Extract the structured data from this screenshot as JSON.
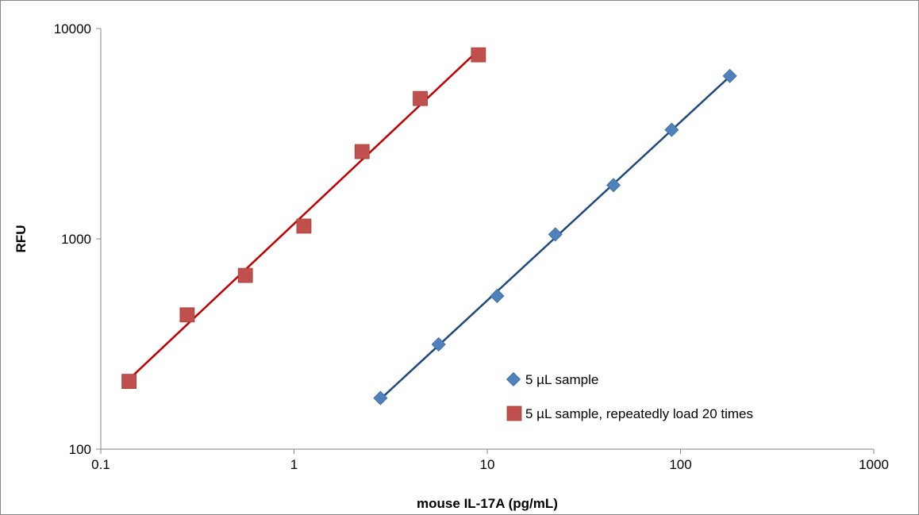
{
  "chart_data": {
    "type": "scatter",
    "xlabel": "mouse IL-17A (pg/mL)",
    "ylabel": "RFU",
    "x_scale": "log",
    "y_scale": "log",
    "xlim": [
      0.1,
      1000
    ],
    "ylim": [
      100,
      10000
    ],
    "x_ticks": [
      "0.1",
      "1",
      "10",
      "100",
      "1000"
    ],
    "y_ticks": [
      "100",
      "1000",
      "10000"
    ],
    "grid": false,
    "legend_position": "inside-lower-right",
    "series": [
      {
        "name": "5 µL sample",
        "marker": "diamond",
        "color": "#4F81BD",
        "trendline_color": "#1F497D",
        "trendline": "power",
        "x": [
          2.8,
          5.6,
          11.25,
          22.5,
          45,
          90,
          180
        ],
        "y": [
          175,
          315,
          535,
          1050,
          1800,
          3300,
          5950
        ]
      },
      {
        "name": "5 µL sample, repeatedly load 20 times",
        "marker": "square",
        "color": "#C0504D",
        "trendline_color": "#C00000",
        "trendline": "power",
        "x": [
          0.14,
          0.28,
          0.56,
          1.125,
          2.25,
          4.5,
          9
        ],
        "y": [
          210,
          435,
          670,
          1150,
          2600,
          4650,
          7500
        ]
      }
    ]
  }
}
